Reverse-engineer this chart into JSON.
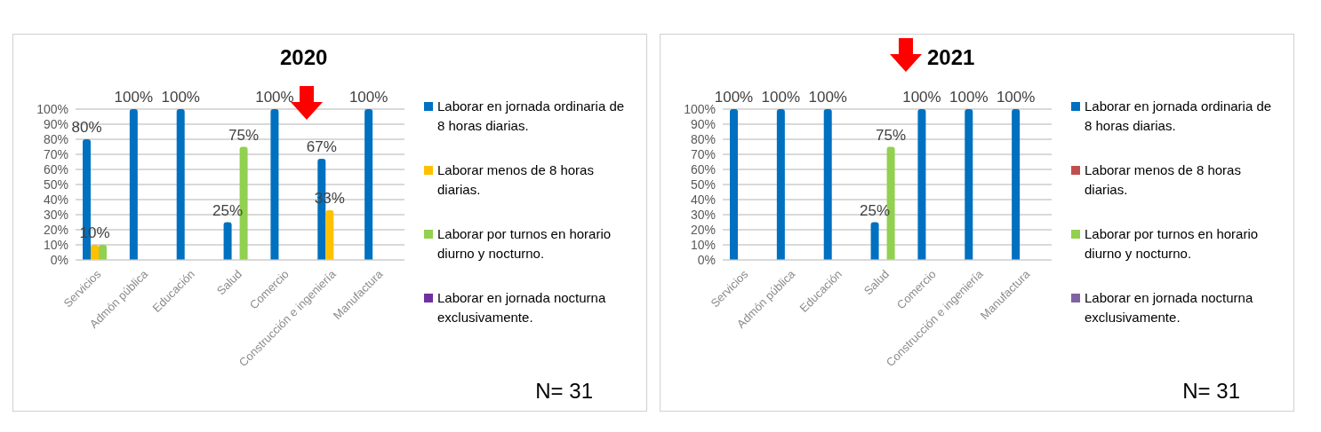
{
  "chart_data": [
    {
      "type": "bar",
      "title": "2020",
      "categories": [
        "Servicios",
        "Admón pública",
        "Educación",
        "Salud",
        "Comercio",
        "Construcción e ingeniería",
        "Manufactura"
      ],
      "series": [
        {
          "name": "Laborar en jornada ordinaria de 8 horas diarias.",
          "color": "#0070c0",
          "values": [
            80,
            100,
            100,
            25,
            100,
            67,
            100
          ],
          "value_labels": [
            "80%",
            "100%",
            "100%",
            "25%",
            "100%",
            "67%",
            "100%"
          ]
        },
        {
          "name": "Laborar menos de 8 horas diarias.",
          "color": "#ffc000",
          "values": [
            10,
            null,
            null,
            null,
            null,
            33,
            null
          ],
          "value_labels": [
            "10%",
            null,
            null,
            null,
            null,
            "33%",
            null
          ]
        },
        {
          "name": "Laborar  por turnos en horario diurno y nocturno.",
          "color": "#92d050",
          "values": [
            10,
            null,
            null,
            75,
            null,
            null,
            null
          ],
          "value_labels": [
            null,
            null,
            null,
            "75%",
            null,
            null,
            null
          ]
        },
        {
          "name": "Laborar en jornada nocturna exclusivamente.",
          "color": "#7030a0",
          "values": [
            null,
            null,
            null,
            null,
            null,
            null,
            null
          ]
        }
      ],
      "ylim": [
        0,
        100
      ],
      "yticks": [
        {
          "value": 0,
          "label": "0%"
        },
        {
          "value": 10,
          "label": "10%"
        },
        {
          "value": 20,
          "label": "20%"
        },
        {
          "value": 30,
          "label": "30%"
        },
        {
          "value": 40,
          "label": "40%"
        },
        {
          "value": 50,
          "label": "50%"
        },
        {
          "value": 60,
          "label": "60%"
        },
        {
          "value": 70,
          "label": "70%"
        },
        {
          "value": 80,
          "label": "80%"
        },
        {
          "value": 90,
          "label": "90%"
        },
        {
          "value": 100,
          "label": "100%"
        }
      ],
      "grid": "y",
      "legend": "right",
      "annotations": [
        "N= 31"
      ]
    },
    {
      "type": "bar",
      "title": "2021",
      "categories": [
        "Servicios",
        "Admón pública",
        "Educación",
        "Salud",
        "Comercio",
        "Construcción e ingeniería",
        "Manufactura"
      ],
      "series": [
        {
          "name": "Laborar en jornada ordinaria de 8 horas diarias.",
          "color": "#0070c0",
          "values": [
            100,
            100,
            100,
            25,
            100,
            100,
            100
          ],
          "value_labels": [
            "100%",
            "100%",
            "100%",
            "25%",
            "100%",
            "100%",
            "100%"
          ]
        },
        {
          "name": "Laborar menos de 8 horas diarias.",
          "color": "#c0504d",
          "values": [
            null,
            null,
            null,
            null,
            null,
            null,
            null
          ]
        },
        {
          "name": "Laborar  por turnos en horario diurno y nocturno.",
          "color": "#92d050",
          "values": [
            null,
            null,
            null,
            75,
            null,
            null,
            null
          ],
          "value_labels": [
            null,
            null,
            null,
            "75%",
            null,
            null,
            null
          ]
        },
        {
          "name": "Laborar en jornada nocturna exclusivamente.",
          "color": "#8064a2",
          "values": [
            null,
            null,
            null,
            null,
            null,
            null,
            null
          ]
        }
      ],
      "ylim": [
        0,
        100
      ],
      "yticks": [
        {
          "value": 0,
          "label": "0%"
        },
        {
          "value": 10,
          "label": "10%"
        },
        {
          "value": 20,
          "label": "20%"
        },
        {
          "value": 30,
          "label": "30%"
        },
        {
          "value": 40,
          "label": "40%"
        },
        {
          "value": 50,
          "label": "50%"
        },
        {
          "value": 60,
          "label": "60%"
        },
        {
          "value": 70,
          "label": "70%"
        },
        {
          "value": 80,
          "label": "80%"
        },
        {
          "value": 90,
          "label": "90%"
        },
        {
          "value": 100,
          "label": "100%"
        }
      ],
      "grid": "y",
      "legend": "right",
      "annotations": [
        "N= 31"
      ]
    }
  ]
}
